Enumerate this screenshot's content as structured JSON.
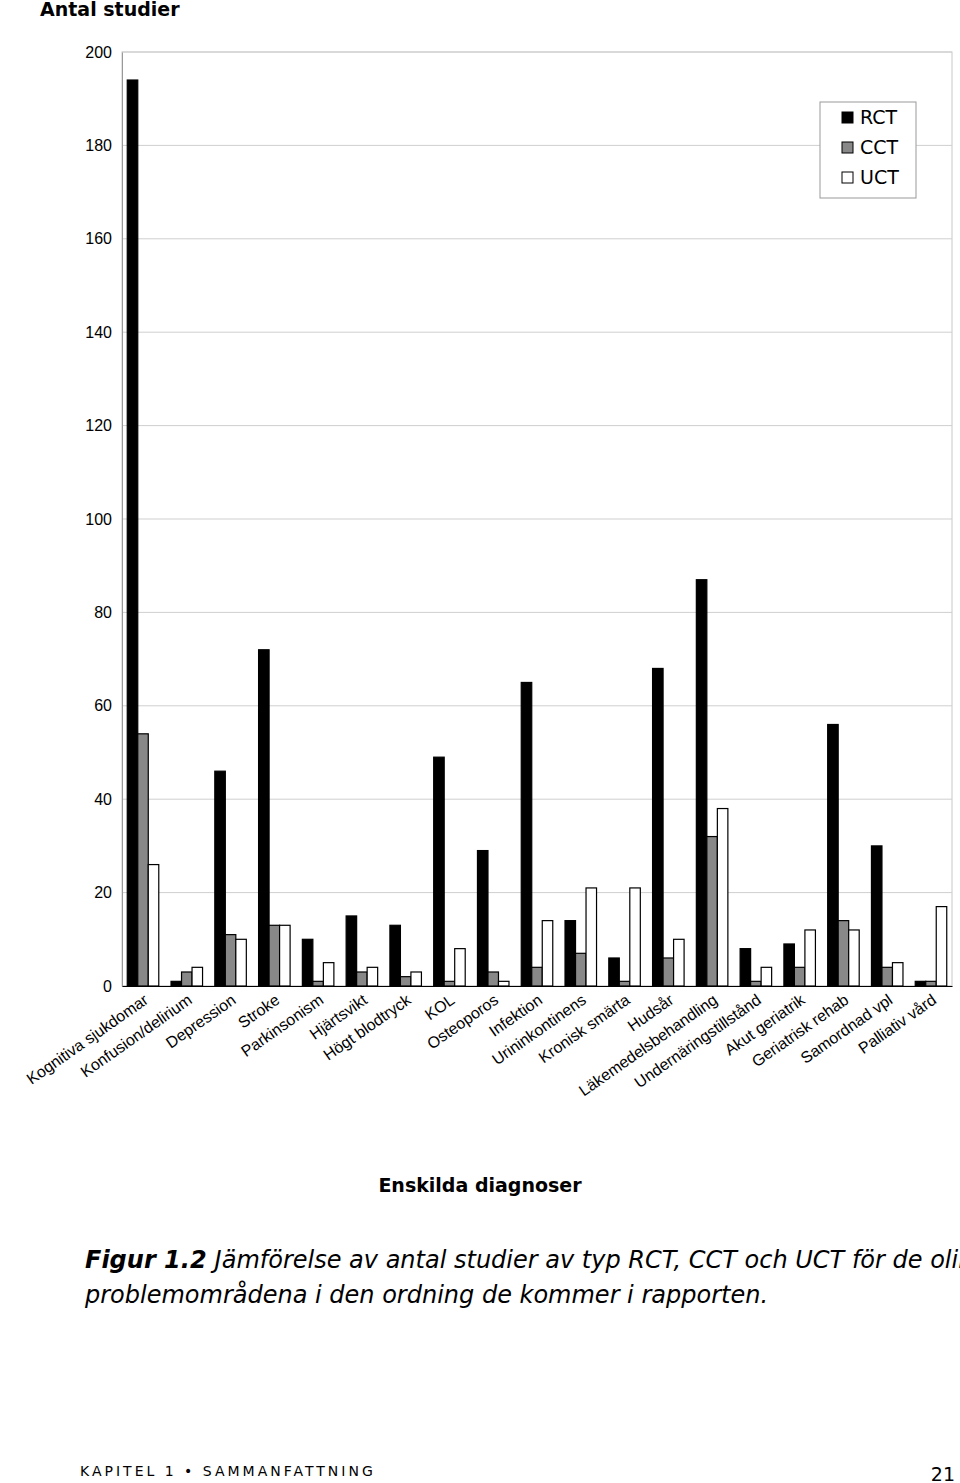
{
  "chart_data": {
    "type": "bar",
    "title": "Antal studier",
    "x_label": "Enskilda diagnoser",
    "categories": [
      "Kognitiva sjukdomar",
      "Konfusion/delirium",
      "Depression",
      "Stroke",
      "Parkinsonism",
      "Hjärtsvikt",
      "Högt blodtryck",
      "KOL",
      "Osteoporos",
      "Infektion",
      "Urininkontinens",
      "Kronisk smärta",
      "Hudsår",
      "Läkemedelsbehandling",
      "Undernäringstillstånd",
      "Akut geriatrik",
      "Geriatrisk rehab",
      "Samordnad vpl",
      "Palliativ vård"
    ],
    "series": [
      {
        "name": "RCT",
        "color": "#000000",
        "values": [
          194,
          1,
          46,
          72,
          10,
          15,
          13,
          49,
          29,
          65,
          14,
          6,
          68,
          87,
          8,
          9,
          56,
          30,
          1
        ]
      },
      {
        "name": "CCT",
        "color": "#888888",
        "values": [
          54,
          3,
          11,
          13,
          1,
          3,
          2,
          1,
          3,
          4,
          7,
          1,
          6,
          32,
          1,
          4,
          14,
          4,
          1
        ]
      },
      {
        "name": "UCT",
        "color": "#ffffff",
        "values": [
          26,
          4,
          10,
          13,
          5,
          4,
          3,
          8,
          1,
          14,
          21,
          21,
          10,
          38,
          4,
          12,
          12,
          5,
          17
        ]
      }
    ],
    "ylim": [
      0,
      200
    ],
    "yticks": [
      0,
      20,
      40,
      60,
      80,
      100,
      120,
      140,
      160,
      180,
      200
    ],
    "grid": true,
    "legend": "top-right"
  },
  "caption": {
    "label": "Figur 1.2",
    "lines": [
      "Jämförelse av antal studier av typ RCT, CCT och UCT för de olika",
      "problemområdena i den ordning de kommer i rapporten."
    ]
  },
  "footer": {
    "text": "KAPITEL 1 • SAMMANFATTNING",
    "page": "21"
  }
}
